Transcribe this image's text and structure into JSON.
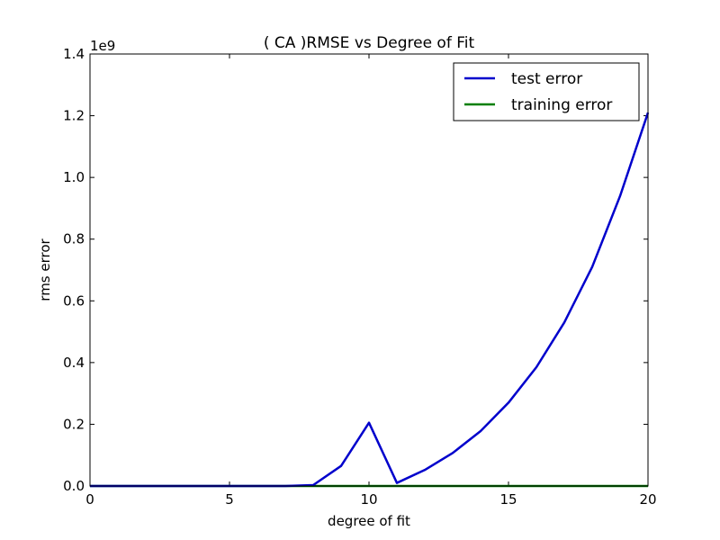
{
  "chart_data": {
    "type": "line",
    "title": "(  CA  )RMSE vs Degree of Fit",
    "xlabel": "degree of fit",
    "ylabel": "rms error",
    "y_offset_label": "1e9",
    "xlim": [
      0,
      20
    ],
    "ylim": [
      0,
      1.4
    ],
    "x_ticks": [
      0,
      5,
      10,
      15,
      20
    ],
    "x_tick_labels": [
      "0",
      "5",
      "10",
      "15",
      "20"
    ],
    "y_ticks": [
      0.0,
      0.2,
      0.4,
      0.6,
      0.8,
      1.0,
      1.2,
      1.4
    ],
    "y_tick_labels": [
      "0.0",
      "0.2",
      "0.4",
      "0.6",
      "0.8",
      "1.0",
      "1.2",
      "1.4"
    ],
    "grid": false,
    "legend_position": "top-right",
    "x": [
      0,
      1,
      2,
      3,
      4,
      5,
      6,
      7,
      8,
      9,
      10,
      11,
      12,
      13,
      14,
      15,
      16,
      17,
      18,
      19,
      20
    ],
    "series": [
      {
        "name": "test error",
        "color": "#0000cc",
        "values": [
          0,
          0,
          0,
          0,
          0,
          0,
          0,
          0,
          0.003,
          0.065,
          0.205,
          0.01,
          0.052,
          0.107,
          0.178,
          0.27,
          0.385,
          0.53,
          0.71,
          0.94,
          1.21
        ]
      },
      {
        "name": "training error",
        "color": "#007f00",
        "values": [
          0,
          0,
          0,
          0,
          0,
          0,
          0,
          0,
          0,
          0,
          0,
          0,
          0,
          0,
          0,
          0,
          0,
          0,
          0,
          0,
          0
        ]
      }
    ]
  }
}
